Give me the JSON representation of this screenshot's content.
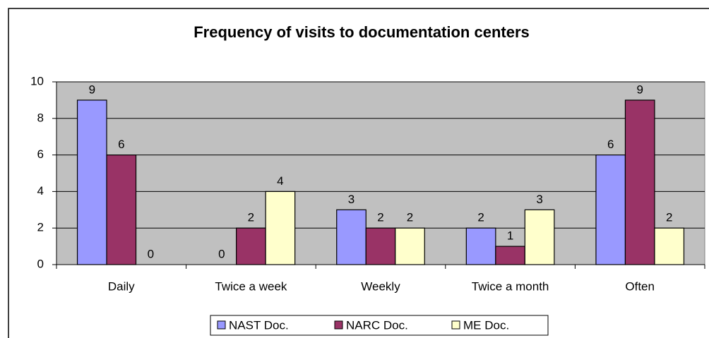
{
  "chart_data": {
    "type": "bar",
    "title": "Frequency of visits to documentation centers",
    "categories": [
      "Daily",
      "Twice a week",
      "Weekly",
      "Twice a month",
      "Often"
    ],
    "series": [
      {
        "name": "NAST Doc.",
        "color": "#9999ff",
        "values": [
          9,
          0,
          3,
          2,
          6
        ]
      },
      {
        "name": "NARC Doc.",
        "color": "#993366",
        "values": [
          6,
          2,
          2,
          1,
          9
        ]
      },
      {
        "name": "ME Doc.",
        "color": "#ffffcc",
        "values": [
          0,
          4,
          2,
          3,
          2
        ]
      }
    ],
    "ylim": [
      0,
      10
    ],
    "yticks": [
      0,
      2,
      4,
      6,
      8,
      10
    ],
    "grid": true,
    "legend": "bottom"
  }
}
